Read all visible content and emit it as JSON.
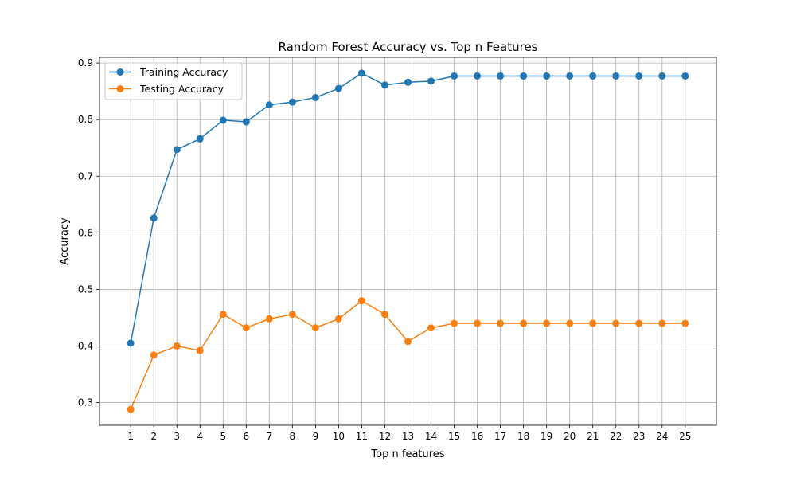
{
  "chart_data": {
    "type": "line",
    "title": "Random Forest Accuracy vs. Top n Features",
    "xlabel": "Top n features",
    "ylabel": "Accuracy",
    "x": [
      1,
      2,
      3,
      4,
      5,
      6,
      7,
      8,
      9,
      10,
      11,
      12,
      13,
      14,
      15,
      16,
      17,
      18,
      19,
      20,
      21,
      22,
      23,
      24,
      25
    ],
    "xlim": [
      -0.35,
      26.35
    ],
    "ylim": [
      0.26,
      0.91
    ],
    "yticks": [
      0.3,
      0.4,
      0.5,
      0.6,
      0.7,
      0.8,
      0.9
    ],
    "grid": true,
    "legend_position": "upper-left",
    "series": [
      {
        "name": "Training Accuracy",
        "color": "#1f77b4",
        "marker": "circle",
        "values": [
          0.405,
          0.626,
          0.747,
          0.766,
          0.799,
          0.796,
          0.826,
          0.831,
          0.839,
          0.855,
          0.882,
          0.861,
          0.866,
          0.868,
          0.877,
          0.877,
          0.877,
          0.877,
          0.877,
          0.877,
          0.877,
          0.877,
          0.877,
          0.877,
          0.877
        ]
      },
      {
        "name": "Testing Accuracy",
        "color": "#ff7f0e",
        "marker": "circle",
        "values": [
          0.288,
          0.384,
          0.4,
          0.392,
          0.456,
          0.432,
          0.448,
          0.456,
          0.432,
          0.448,
          0.48,
          0.456,
          0.408,
          0.432,
          0.44,
          0.44,
          0.44,
          0.44,
          0.44,
          0.44,
          0.44,
          0.44,
          0.44,
          0.44,
          0.44
        ]
      }
    ]
  }
}
